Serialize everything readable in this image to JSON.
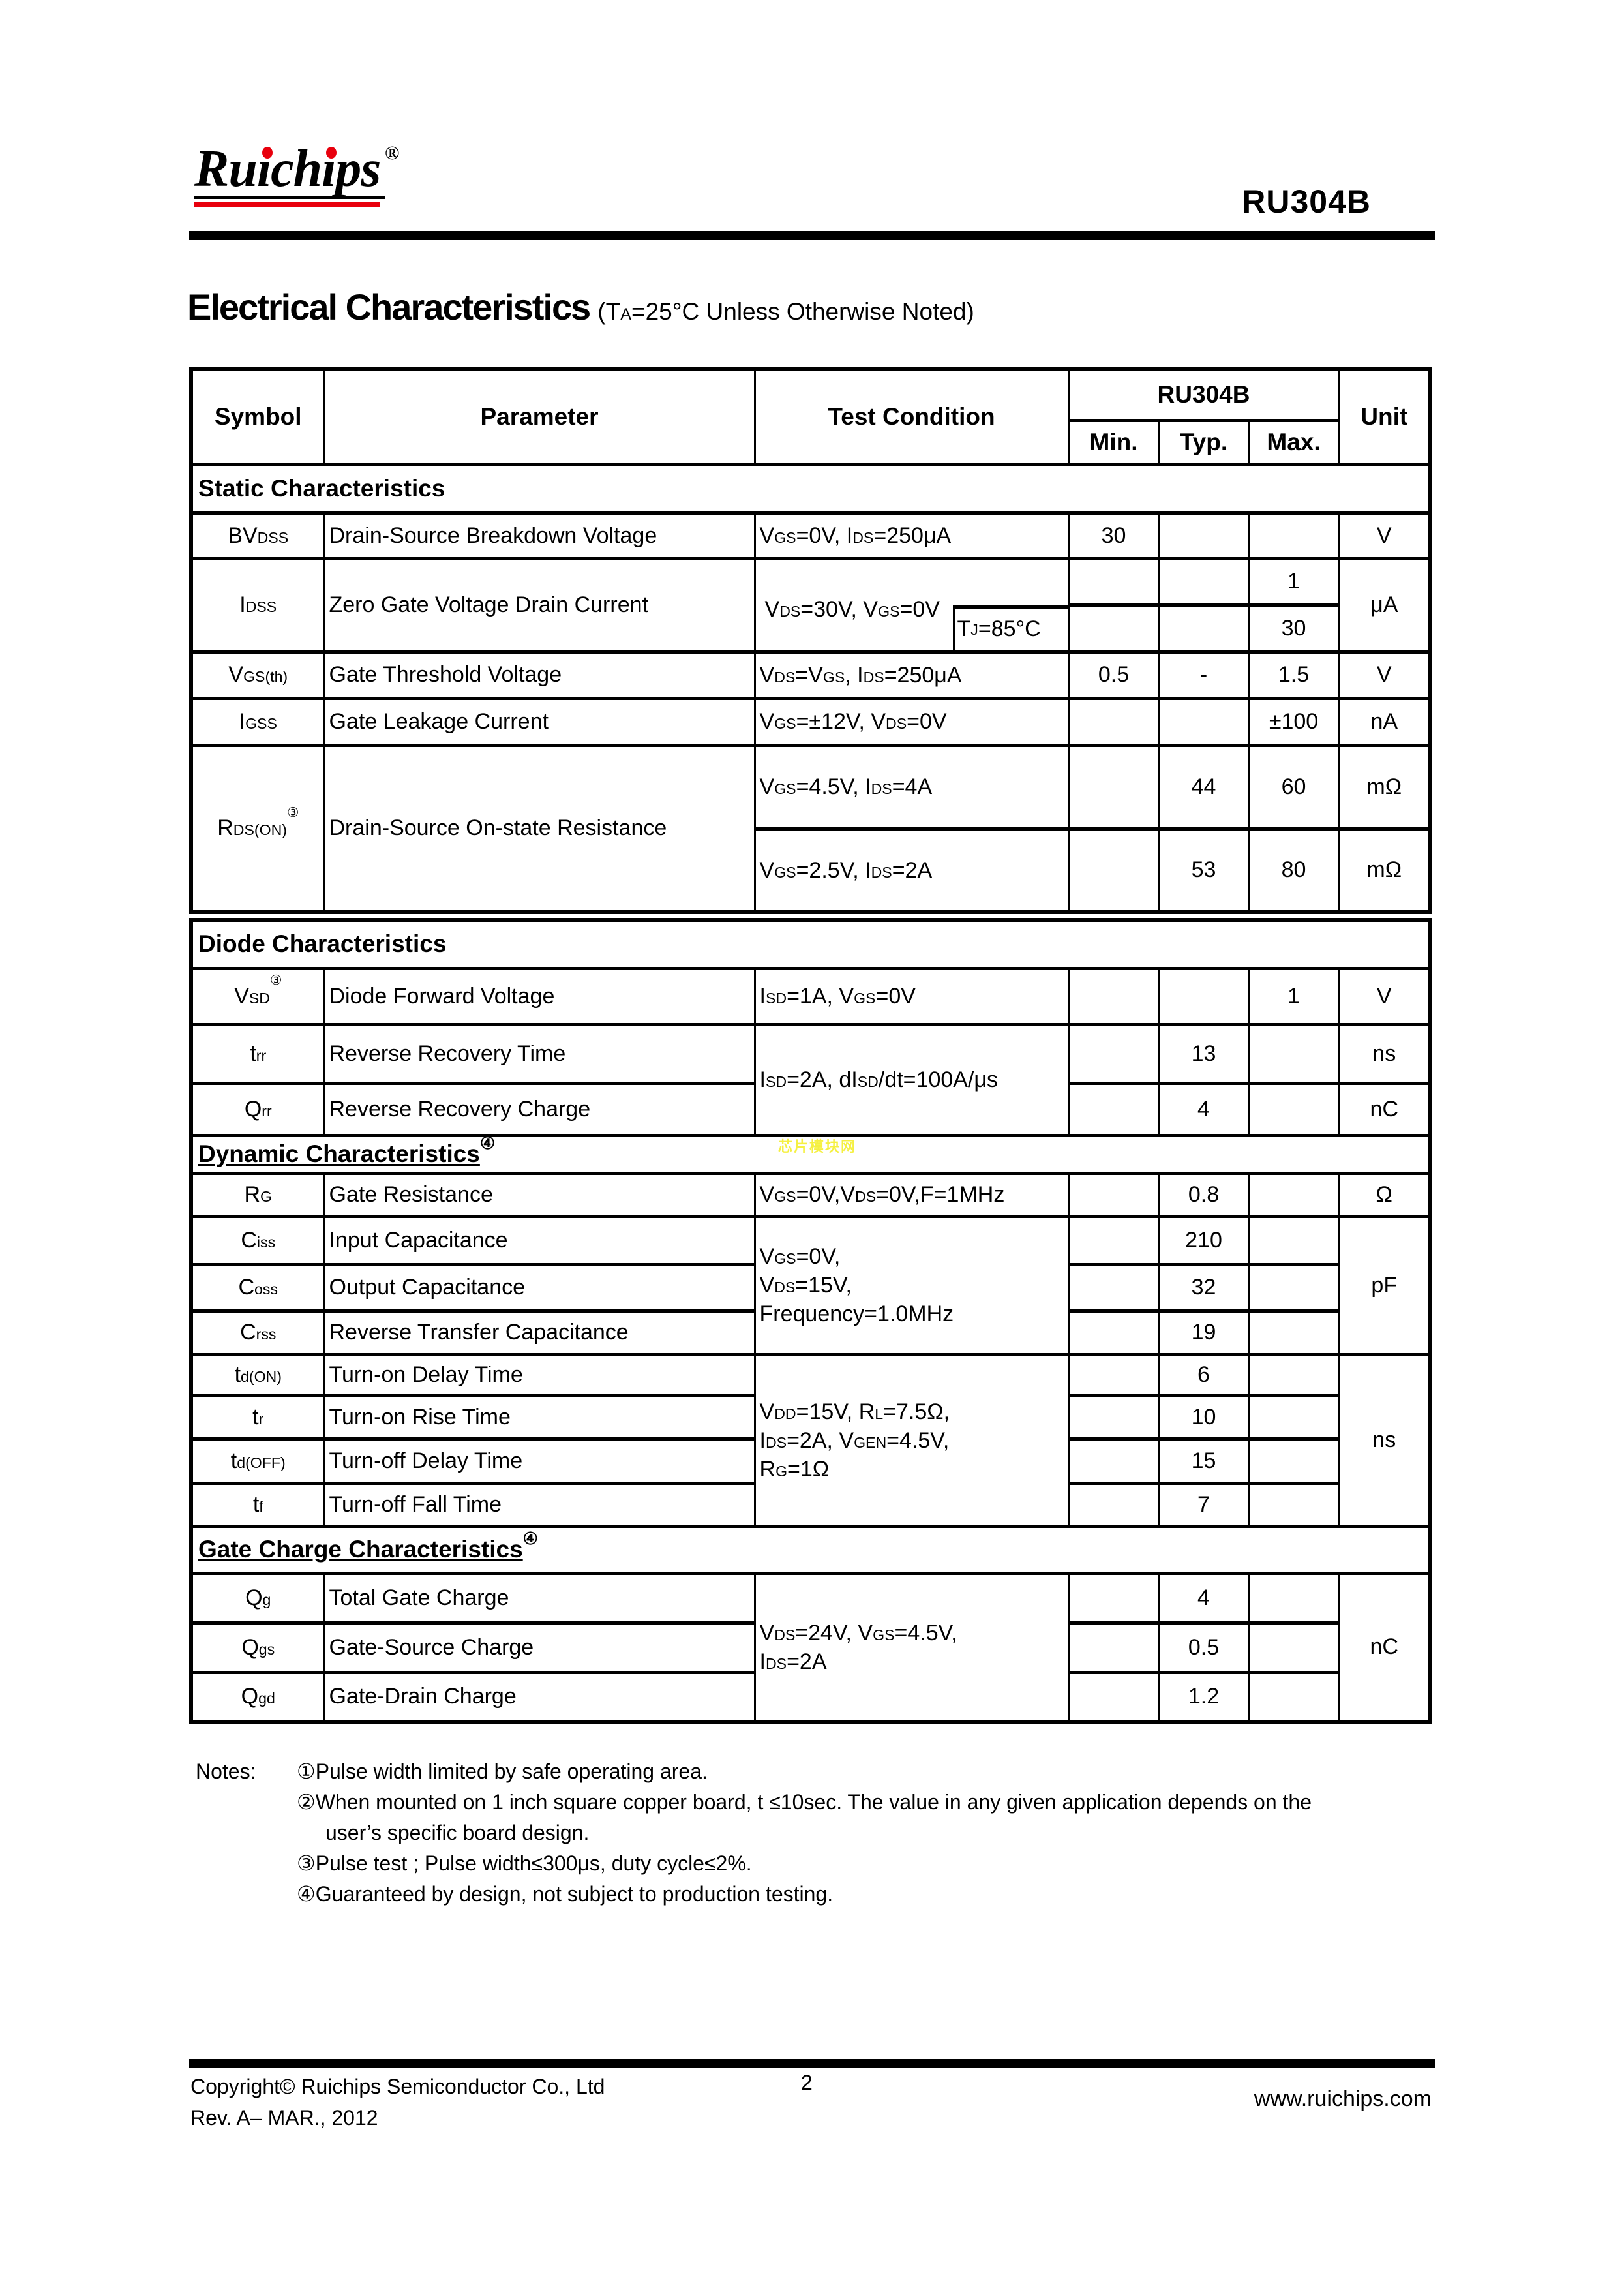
{
  "colors": {
    "accent_red": "#e8000d",
    "watermark_yellow": "#f5f042",
    "ink": "#000000",
    "paper": "#ffffff"
  },
  "page": {
    "part_number": "RU304B",
    "logo": {
      "text": "Ruichips",
      "registered": "®"
    }
  },
  "title": {
    "heading": "Electrical Characteristics",
    "condition": "(T~A~=25°C Unless Otherwise Noted)"
  },
  "watermark": {
    "text": "芯片模块网"
  },
  "table_header": {
    "symbol": "Symbol",
    "parameter": "Parameter",
    "test_condition": "Test Condition",
    "device": "RU304B",
    "min": "Min.",
    "typ": "Typ.",
    "max": "Max.",
    "unit": "Unit"
  },
  "static": {
    "title": "Static Characteristics",
    "rows": {
      "bvdss": {
        "symbol": "BV~DSS~",
        "parameter": "Drain-Source Breakdown Voltage",
        "condition": "V~GS~=0V, I~DS~=250μA",
        "min": "30",
        "typ": "",
        "max": "",
        "unit": "V"
      },
      "idss": {
        "symbol": "I~DSS~",
        "parameter": "Zero Gate Voltage Drain Current",
        "condition": "V~DS~=30V, V~GS~=0V",
        "sub_condition": "T~J~=85°C",
        "max_25c": "1",
        "max_85c": "30",
        "unit": "μA"
      },
      "vgsth": {
        "symbol": "V~GS(th)~",
        "parameter": "Gate Threshold Voltage",
        "condition": "V~DS~=V~GS~, I~DS~=250μA",
        "min": "0.5",
        "typ": "-",
        "max": "1.5",
        "unit": "V"
      },
      "igss": {
        "symbol": "I~GSS~",
        "parameter": "Gate Leakage Current",
        "condition": "V~GS~=±12V, V~DS~=0V",
        "min": "",
        "typ": "",
        "max": "±100",
        "unit": "nA"
      },
      "rdson": {
        "symbol": "R~DS(ON)~",
        "note_ref": "③",
        "parameter": "Drain-Source On-state Resistance",
        "sub_rows": [
          {
            "condition": "V~GS~=4.5V, I~DS~=4A",
            "min": "",
            "typ": "44",
            "max": "60",
            "unit": "mΩ"
          },
          {
            "condition": "V~GS~=2.5V, I~DS~=2A",
            "min": "",
            "typ": "53",
            "max": "80",
            "unit": "mΩ"
          }
        ]
      }
    }
  },
  "diode": {
    "title": "Diode Characteristics",
    "rows": {
      "vsd": {
        "symbol": "V~SD~",
        "note_ref": "③",
        "parameter": "Diode Forward Voltage",
        "condition": "I~SD~=1A, V~GS~=0V",
        "min": "",
        "typ": "",
        "max": "1",
        "unit": "V"
      },
      "shared_condition": "I~SD~=2A, dI~SD~/dt=100A/μs",
      "trr": {
        "symbol": "t~rr~",
        "parameter": "Reverse Recovery Time",
        "min": "",
        "typ": "13",
        "max": "",
        "unit": "ns"
      },
      "qrr": {
        "symbol": "Q~rr~",
        "parameter": "Reverse Recovery Charge",
        "min": "",
        "typ": "4",
        "max": "",
        "unit": "nC"
      }
    }
  },
  "dynamic": {
    "title": "Dynamic Characteristics",
    "note_ref": "④",
    "rows": {
      "rg": {
        "symbol": "R~G~",
        "parameter": "Gate Resistance",
        "condition": "V~GS~=0V,V~DS~=0V,F=1MHz",
        "min": "",
        "typ": "0.8",
        "max": "",
        "unit": "Ω"
      },
      "capacitance_condition": "V~GS~=0V,\nV~DS~=15V,\nFrequency=1.0MHz",
      "capacitance_unit": "pF",
      "ciss": {
        "symbol": "C~iss~",
        "parameter": "Input Capacitance",
        "min": "",
        "typ": "210",
        "max": ""
      },
      "coss": {
        "symbol": "C~oss~",
        "parameter": "Output Capacitance",
        "min": "",
        "typ": "32",
        "max": ""
      },
      "crss": {
        "symbol": "C~rss~",
        "parameter": "Reverse Transfer Capacitance",
        "min": "",
        "typ": "19",
        "max": ""
      },
      "switching_condition": "V~DD~=15V, R~L~=7.5Ω,\nI~DS~=2A, V~GEN~=4.5V,\nR~G~=1Ω",
      "switching_unit": "ns",
      "tdon": {
        "symbol": "t~d(ON)~",
        "parameter": "Turn-on Delay Time",
        "min": "",
        "typ": "6",
        "max": ""
      },
      "tr": {
        "symbol": "t~r~",
        "parameter": "Turn-on Rise Time",
        "min": "",
        "typ": "10",
        "max": ""
      },
      "tdoff": {
        "symbol": "t~d(OFF)~",
        "parameter": "Turn-off Delay Time",
        "min": "",
        "typ": "15",
        "max": ""
      },
      "tf": {
        "symbol": "t~f~",
        "parameter": "Turn-off Fall Time",
        "min": "",
        "typ": "7",
        "max": ""
      }
    }
  },
  "gate_charge": {
    "title": "Gate Charge Characteristics",
    "note_ref": "④",
    "rows": {
      "condition": "V~DS~=24V, V~GS~=4.5V,\nI~DS~=2A",
      "unit": "nC",
      "qg": {
        "symbol": "Q~g~",
        "parameter": "Total Gate Charge",
        "min": "",
        "typ": "4",
        "max": ""
      },
      "qgs": {
        "symbol": "Q~gs~",
        "parameter": "Gate-Source Charge",
        "min": "",
        "typ": "0.5",
        "max": ""
      },
      "qgd": {
        "symbol": "Q~gd~",
        "parameter": "Gate-Drain Charge",
        "min": "",
        "typ": "1.2",
        "max": ""
      }
    }
  },
  "notes": {
    "label": "Notes:",
    "items": [
      {
        "marker": "①",
        "text": "Pulse width limited by safe operating area."
      },
      {
        "marker": "②",
        "text": "When mounted on 1 inch square copper board, t ≤10sec. The value in any given application depends on the user’s specific board design."
      },
      {
        "marker": "③",
        "text": "Pulse test ; Pulse width≤300μs, duty cycle≤2%."
      },
      {
        "marker": "④",
        "text": "Guaranteed by design, not subject to production testing."
      }
    ]
  },
  "footer": {
    "copyright": "Copyright© Ruichips Semiconductor Co., Ltd",
    "page_number": "2",
    "website": "www.ruichips.com",
    "revision": "Rev. A– MAR., 2012"
  }
}
